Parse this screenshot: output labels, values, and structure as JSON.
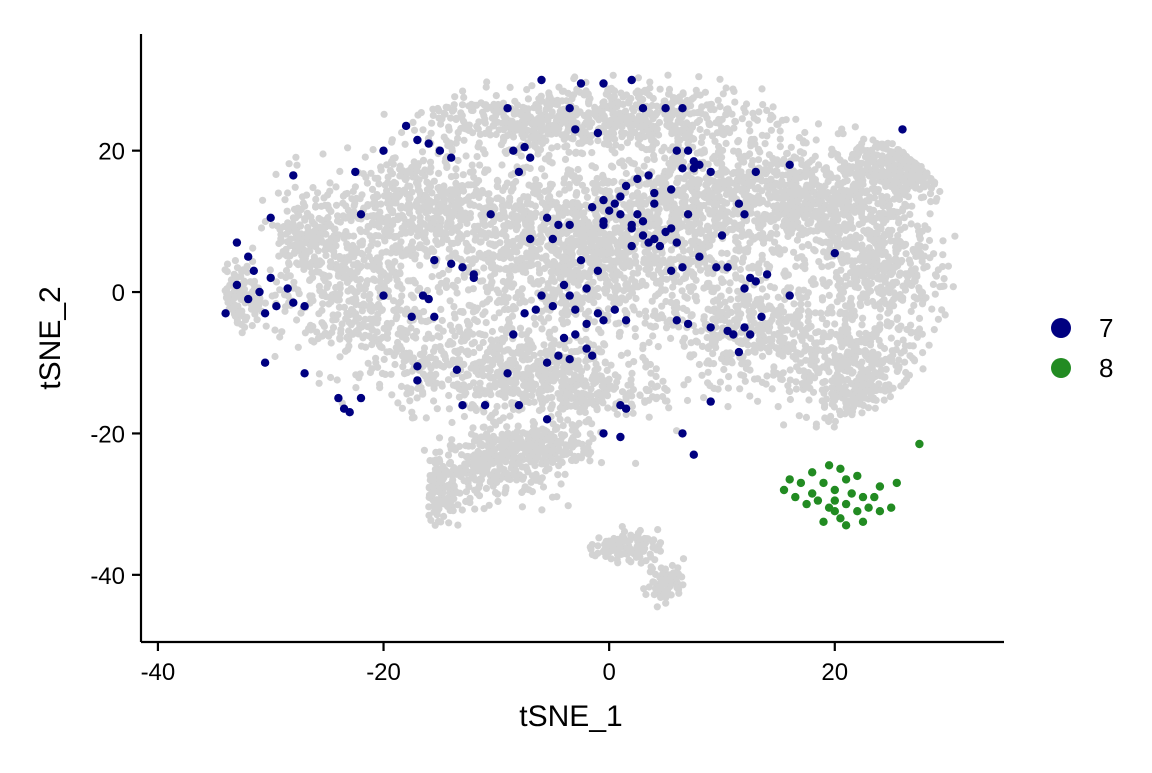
{
  "chart_data": {
    "type": "scatter",
    "title": "",
    "xlabel": "tSNE_1",
    "ylabel": "tSNE_2",
    "xlim": [
      -41.5,
      35
    ],
    "ylim": [
      -49.5,
      36.5
    ],
    "xticks": [
      -40,
      -20,
      0,
      20
    ],
    "yticks": [
      -40,
      -20,
      0,
      20
    ],
    "xtick_labels": [
      "-40",
      "-20",
      "0",
      "20"
    ],
    "ytick_labels": [
      "-40",
      "-20",
      "0",
      "20"
    ],
    "grid": false,
    "legend_position": "right",
    "background_color": "#d3d3d3",
    "series": [
      {
        "name": "7",
        "color": "#000080",
        "points": [
          [
            -31,
            0
          ],
          [
            -30,
            2
          ],
          [
            -32,
            -1
          ],
          [
            -29.5,
            -2
          ],
          [
            -31.5,
            3
          ],
          [
            -30.5,
            -3
          ],
          [
            -33,
            1
          ],
          [
            -28.5,
            0.5
          ],
          [
            -32,
            5
          ],
          [
            -33,
            7
          ],
          [
            -30,
            10.5
          ],
          [
            -34,
            -3
          ],
          [
            -28,
            -1.5
          ],
          [
            -27,
            -2
          ],
          [
            -30.5,
            -10
          ],
          [
            -27,
            -11.5
          ],
          [
            -24,
            -15
          ],
          [
            -23,
            -17
          ],
          [
            -22,
            -15
          ],
          [
            -23.5,
            -16.5
          ],
          [
            -22,
            11
          ],
          [
            -22.5,
            17
          ],
          [
            -20,
            20
          ],
          [
            -18,
            23.5
          ],
          [
            -17,
            21.5
          ],
          [
            -16,
            21
          ],
          [
            -15,
            20
          ],
          [
            -14,
            19
          ],
          [
            -28,
            16.5
          ],
          [
            -12,
            2.5
          ],
          [
            -13,
            3.5
          ],
          [
            -14,
            4
          ],
          [
            -15.5,
            4.5
          ],
          [
            -10.5,
            11
          ],
          [
            -8.5,
            20
          ],
          [
            -7,
            19
          ],
          [
            -8,
            17
          ],
          [
            -7.5,
            20.5
          ],
          [
            -9,
            26
          ],
          [
            -7,
            7.5
          ],
          [
            -5.5,
            10.5
          ],
          [
            -4.5,
            9.5
          ],
          [
            -5,
            7.5
          ],
          [
            -3.5,
            9.5
          ],
          [
            -20,
            -0.5
          ],
          [
            -16.5,
            -0.5
          ],
          [
            -16,
            -1
          ],
          [
            -15.5,
            -3.5
          ],
          [
            -17.5,
            -3.5
          ],
          [
            -13.5,
            -11
          ],
          [
            -13,
            -16
          ],
          [
            -17,
            -12.5
          ],
          [
            -17,
            -10.5
          ],
          [
            -11,
            -16
          ],
          [
            -9,
            -11.5
          ],
          [
            -8.5,
            -6
          ],
          [
            -7.5,
            -3
          ],
          [
            -6,
            -0.5
          ],
          [
            -5,
            -2
          ],
          [
            -4.5,
            -9
          ],
          [
            -3.5,
            -9.5
          ],
          [
            -4,
            -6.5
          ],
          [
            -5.5,
            -10
          ],
          [
            -5.5,
            -18
          ],
          [
            -3,
            -2.5
          ],
          [
            -3.5,
            -0.5
          ],
          [
            -4,
            1
          ],
          [
            -2.5,
            4.5
          ],
          [
            -2,
            -4.5
          ],
          [
            -1,
            -3
          ],
          [
            -0.5,
            -4
          ],
          [
            0.5,
            -2.5
          ],
          [
            1.5,
            -4
          ],
          [
            -2,
            0.5
          ],
          [
            -1,
            3
          ],
          [
            -1.5,
            12
          ],
          [
            -0.5,
            13
          ],
          [
            0.5,
            12.5
          ],
          [
            1,
            11
          ],
          [
            -0.5,
            9.5
          ],
          [
            2,
            9
          ],
          [
            3,
            8
          ],
          [
            4,
            7.5
          ],
          [
            5,
            8.5
          ],
          [
            4.5,
            6.5
          ],
          [
            3.5,
            7
          ],
          [
            2,
            6.5
          ],
          [
            1.5,
            15
          ],
          [
            2.5,
            16
          ],
          [
            3.5,
            16.5
          ],
          [
            4,
            14
          ],
          [
            6,
            20
          ],
          [
            7,
            20
          ],
          [
            7.5,
            18.5
          ],
          [
            8,
            18
          ],
          [
            7.5,
            17.5
          ],
          [
            9,
            17
          ],
          [
            6.5,
            17.5
          ],
          [
            2,
            9.5
          ],
          [
            -0.5,
            10
          ],
          [
            0,
            11.5
          ],
          [
            1,
            13.5
          ],
          [
            2.5,
            11
          ],
          [
            3,
            10
          ],
          [
            5.5,
            9
          ],
          [
            6,
            7
          ],
          [
            4,
            12.5
          ],
          [
            5.5,
            14.5
          ],
          [
            -6.5,
            -2.5
          ],
          [
            -1.5,
            -9
          ],
          [
            -2,
            -8
          ],
          [
            -3,
            -6
          ],
          [
            1,
            -16
          ],
          [
            1.5,
            -16.5
          ],
          [
            -0.5,
            -20
          ],
          [
            1,
            -20.5
          ],
          [
            6,
            -4
          ],
          [
            7,
            -4.5
          ],
          [
            9,
            -5
          ],
          [
            10.5,
            -5.5
          ],
          [
            11,
            -6
          ],
          [
            12,
            -5
          ],
          [
            12.5,
            -6
          ],
          [
            11.5,
            -8.5
          ],
          [
            9,
            -15.5
          ],
          [
            6.5,
            -20
          ],
          [
            7.5,
            -23
          ],
          [
            16,
            -0.5
          ],
          [
            13.5,
            -3.5
          ],
          [
            12,
            0.5
          ],
          [
            13,
            1.5
          ],
          [
            14,
            2.5
          ],
          [
            12.5,
            2
          ],
          [
            10.5,
            3.5
          ],
          [
            9.5,
            3.5
          ],
          [
            8,
            5
          ],
          [
            6.5,
            3.5
          ],
          [
            5.5,
            3
          ],
          [
            10,
            8
          ],
          [
            11.5,
            12.5
          ],
          [
            12,
            11
          ],
          [
            13,
            17
          ],
          [
            16,
            18
          ],
          [
            20,
            5.5
          ],
          [
            26,
            23
          ],
          [
            7,
            11
          ],
          [
            -12,
            2
          ],
          [
            -3.5,
            26
          ],
          [
            3,
            26
          ],
          [
            -0.5,
            29.5
          ],
          [
            -3,
            23
          ],
          [
            -1,
            22.5
          ],
          [
            -6,
            30
          ],
          [
            -2.5,
            29.5
          ],
          [
            2,
            30
          ],
          [
            5,
            26
          ],
          [
            6.5,
            26
          ],
          [
            -8,
            -16
          ]
        ]
      },
      {
        "name": "8",
        "color": "#228b22",
        "points": [
          [
            20,
            -28
          ],
          [
            21,
            -30
          ],
          [
            19,
            -27
          ],
          [
            22,
            -31
          ],
          [
            20.5,
            -32
          ],
          [
            18.5,
            -29.5
          ],
          [
            21.5,
            -28.5
          ],
          [
            23,
            -30.5
          ],
          [
            24,
            -31
          ],
          [
            25,
            -30.5
          ],
          [
            22.5,
            -29
          ],
          [
            17,
            -27
          ],
          [
            16,
            -26.5
          ],
          [
            15.5,
            -28
          ],
          [
            18,
            -25.5
          ],
          [
            19.5,
            -24.5
          ],
          [
            20.5,
            -25
          ],
          [
            22,
            -26
          ],
          [
            24,
            -27.5
          ],
          [
            25.5,
            -27
          ],
          [
            21,
            -33
          ],
          [
            19,
            -32.5
          ],
          [
            20,
            -31
          ],
          [
            23.5,
            -29
          ],
          [
            27.5,
            -21.5
          ],
          [
            18,
            -28.5
          ],
          [
            19.5,
            -30.5
          ],
          [
            21,
            -26.5
          ],
          [
            17.5,
            -30
          ],
          [
            22.5,
            -32.5
          ],
          [
            20,
            -29.5
          ],
          [
            16.5,
            -29
          ]
        ]
      }
    ]
  }
}
